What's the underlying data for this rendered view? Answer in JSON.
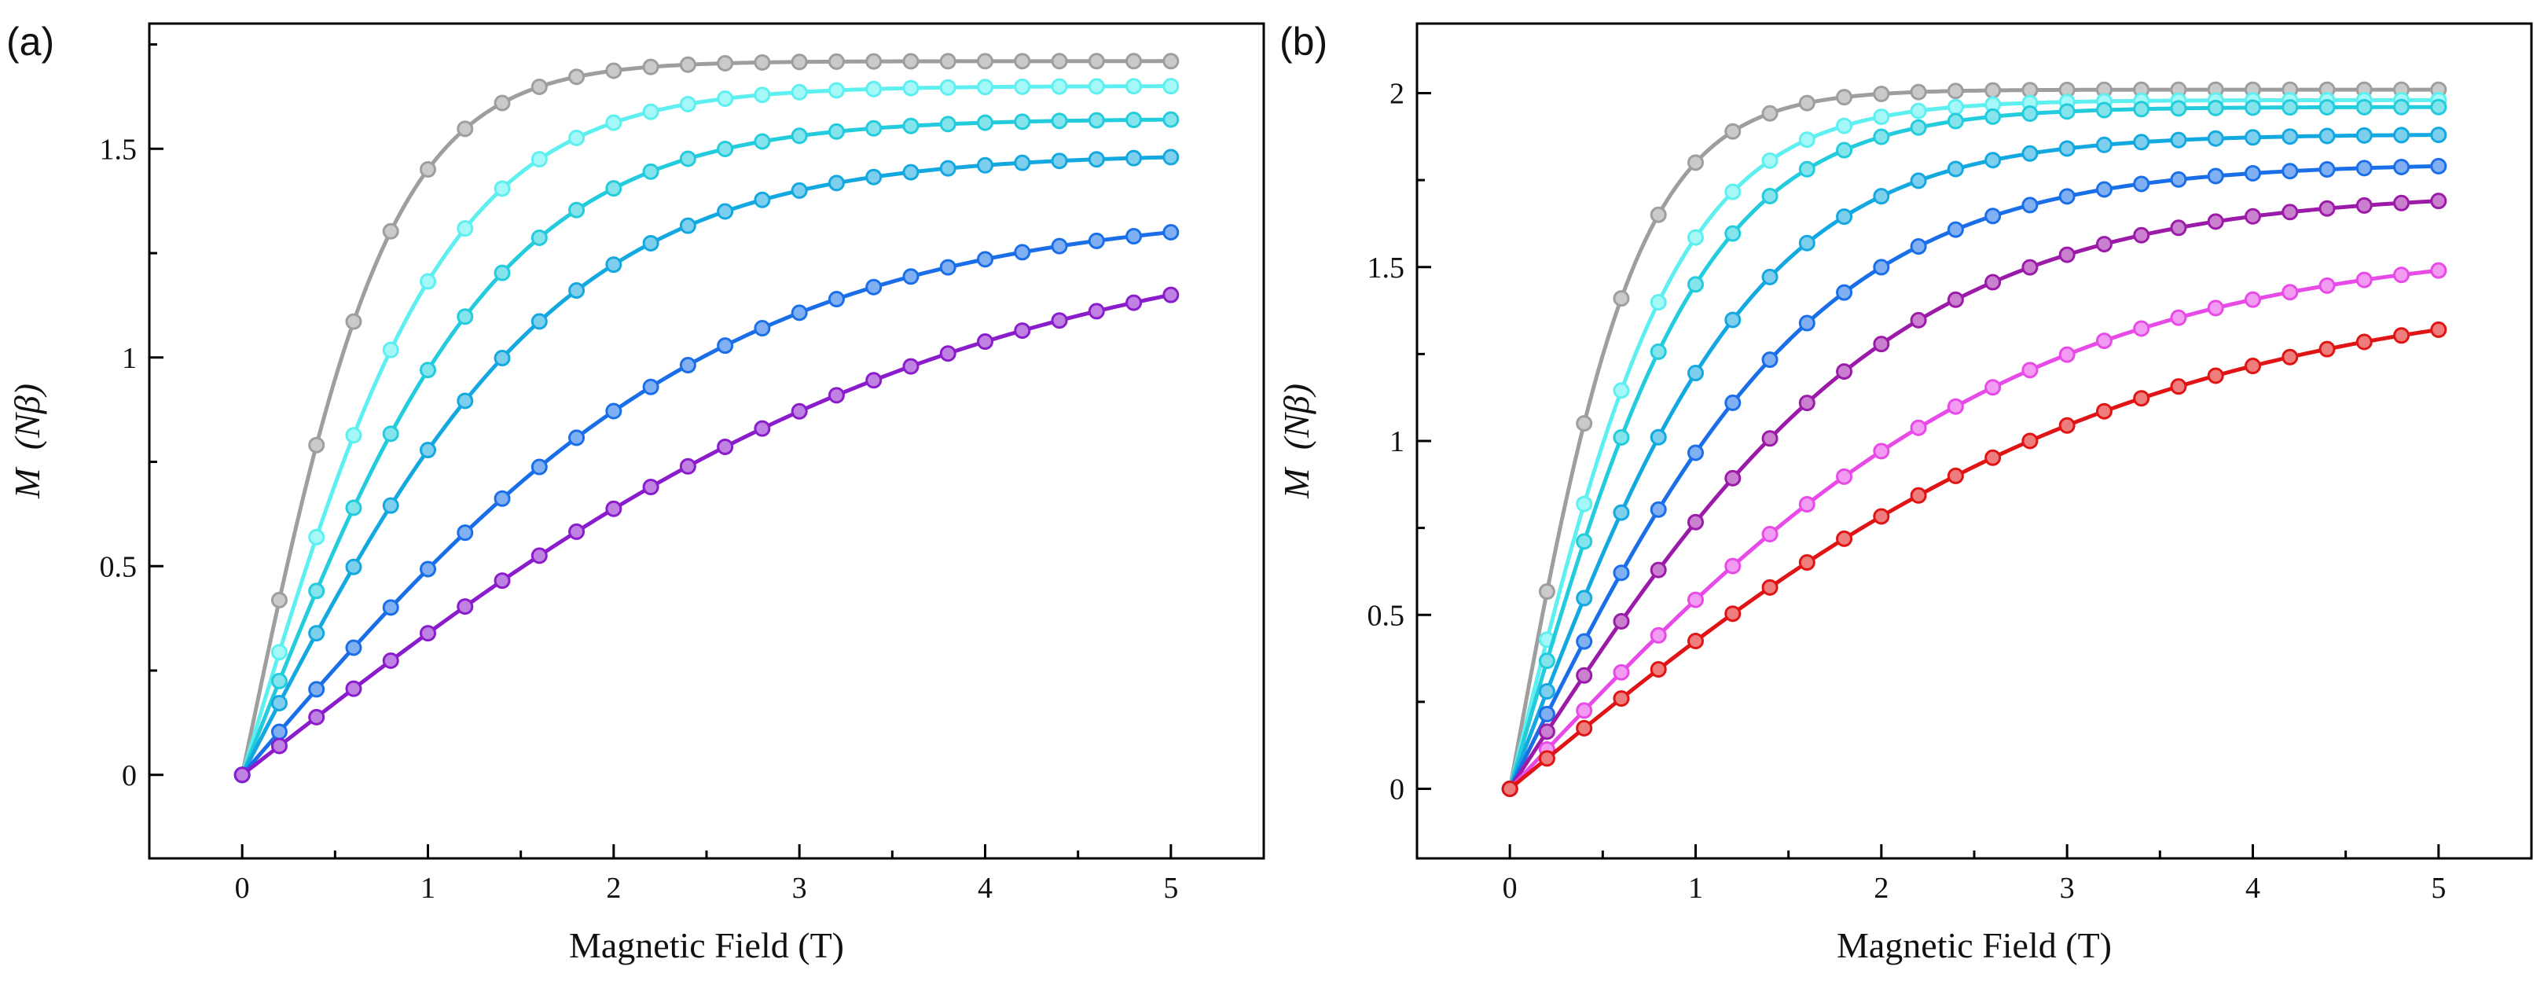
{
  "chart_data": [
    {
      "type": "line",
      "panel_label": "(a)",
      "xlabel": "Magnetic Field (T)",
      "ylabel_main": "M",
      "ylabel_unit": "(Nβ)",
      "xlim": [
        -0.5,
        5.5
      ],
      "ylim": [
        -0.2,
        1.8
      ],
      "xticks": [
        0,
        1,
        2,
        3,
        4,
        5
      ],
      "xtick_labels": [
        "0",
        "1",
        "2",
        "3",
        "4",
        "5"
      ],
      "yticks": [
        0,
        0.5,
        1,
        1.5
      ],
      "ytick_labels": [
        "0",
        "0.5",
        "1",
        "1.5"
      ],
      "series": [
        {
          "color": "#9e9e9e",
          "M_5T": 1.71,
          "shape": 1.25
        },
        {
          "color": "#5ef0f0",
          "M_5T": 1.65,
          "shape": 0.9
        },
        {
          "color": "#22ccdd",
          "M_5T": 1.57,
          "shape": 0.72
        },
        {
          "color": "#14a8e0",
          "M_5T": 1.48,
          "shape": 0.58
        },
        {
          "color": "#1a6fe8",
          "M_5T": 1.3,
          "shape": 0.38
        },
        {
          "color": "#8a1ccc",
          "M_5T": 1.15,
          "shape": 0.26
        }
      ]
    },
    {
      "type": "line",
      "panel_label": "(b)",
      "xlabel": "Magnetic Field (T)",
      "ylabel_main": "M",
      "ylabel_unit": "(Nβ)",
      "xlim": [
        -0.5,
        5.5
      ],
      "ylim": [
        -0.2,
        2.2
      ],
      "xticks": [
        0,
        1,
        2,
        3,
        4,
        5
      ],
      "xtick_labels": [
        "0",
        "1",
        "2",
        "3",
        "4",
        "5"
      ],
      "yticks": [
        0,
        0.5,
        1,
        1.5,
        2
      ],
      "ytick_labels": [
        "0",
        "0.5",
        "1",
        "1.5",
        "2"
      ],
      "series": [
        {
          "color": "#9e9e9e",
          "M_5T": 2.01,
          "shape": 1.45
        },
        {
          "color": "#5ef0f0",
          "M_5T": 1.98,
          "shape": 1.1
        },
        {
          "color": "#22ccdd",
          "M_5T": 1.96,
          "shape": 0.95
        },
        {
          "color": "#14a8e0",
          "M_5T": 1.88,
          "shape": 0.75
        },
        {
          "color": "#1a6fe8",
          "M_5T": 1.79,
          "shape": 0.6
        },
        {
          "color": "#9c1aa8",
          "M_5T": 1.69,
          "shape": 0.48
        },
        {
          "color": "#e84ae8",
          "M_5T": 1.49,
          "shape": 0.36
        },
        {
          "color": "#e01414",
          "M_5T": 1.32,
          "shape": 0.3
        }
      ]
    }
  ]
}
